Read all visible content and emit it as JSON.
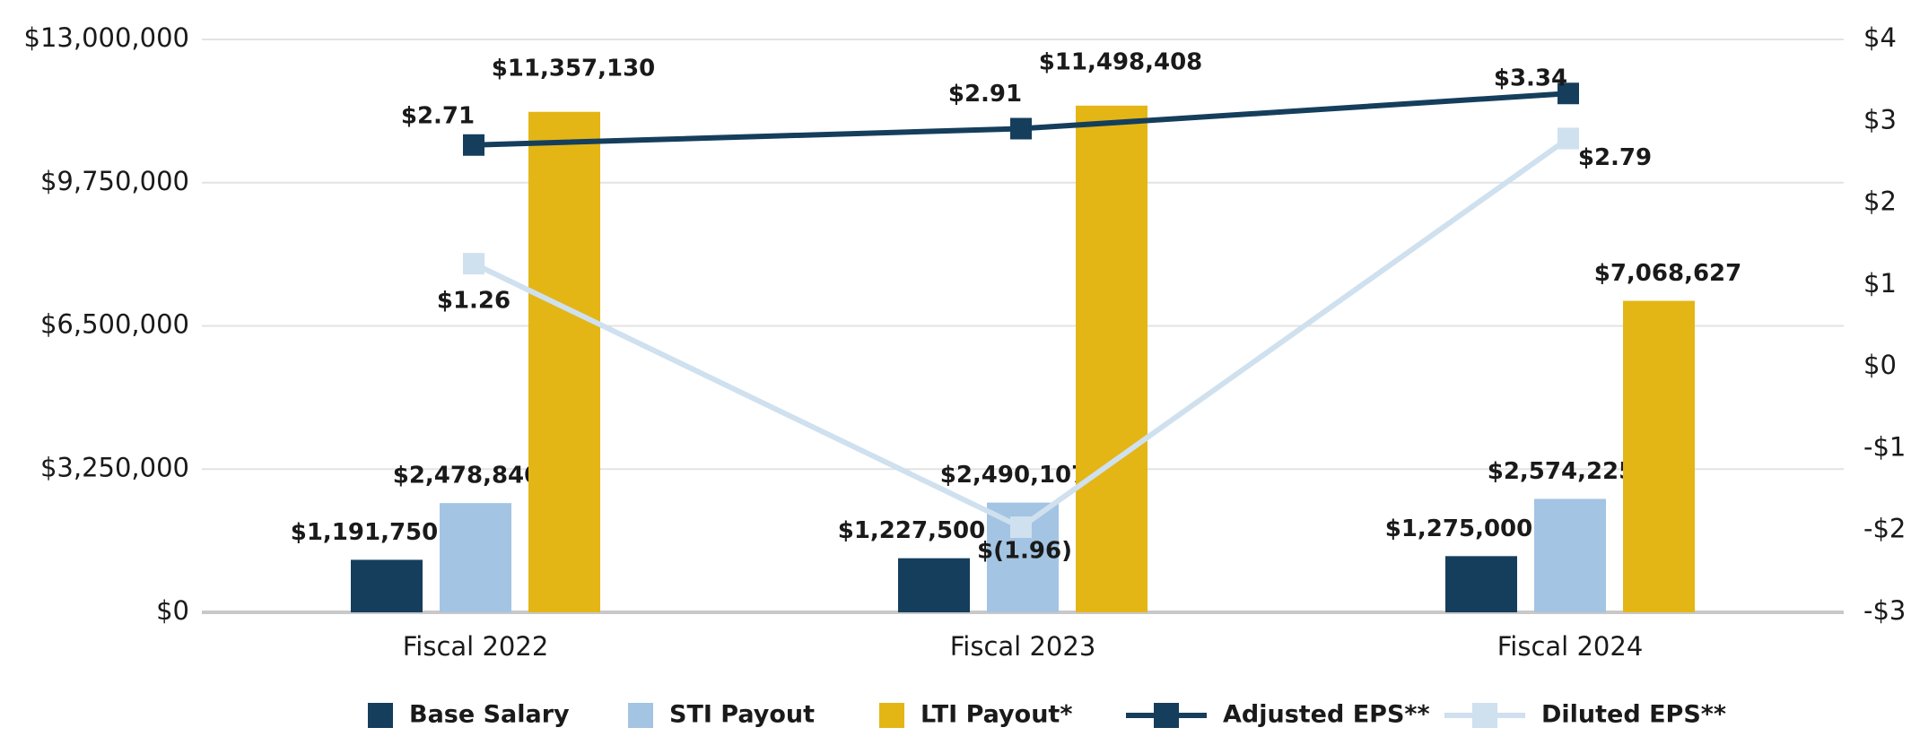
{
  "chart_data": {
    "type": "bar",
    "categories": [
      "Fiscal 2022",
      "Fiscal 2023",
      "Fiscal 2024"
    ],
    "series": [
      {
        "name": "Base Salary",
        "color": "#153e5c",
        "values": [
          1191750,
          1227500,
          1275000
        ],
        "value_labels": [
          "$1,191,750",
          "$1,227,500",
          "$1,275,000"
        ]
      },
      {
        "name": "STI Payout",
        "color": "#a3c4e2",
        "values": [
          2478840,
          2490107,
          2574225
        ],
        "value_labels": [
          "$2,478,840",
          "$2,490,107",
          "$2,574,225"
        ]
      },
      {
        "name": "LTI Payout*",
        "color": "#e3b616",
        "values": [
          11357130,
          11498408,
          7068627
        ],
        "value_labels": [
          "$11,357,130",
          "$11,498,408",
          "$7,068,627"
        ]
      },
      {
        "name": "Adjusted EPS**",
        "color": "#153e5c",
        "axis": "y2",
        "type": "line",
        "values": [
          2.71,
          2.91,
          3.34
        ],
        "value_labels": [
          "$2.71",
          "$2.91",
          "$3.34"
        ]
      },
      {
        "name": "Diluted EPS**",
        "color": "#cfe0ef",
        "axis": "y2",
        "type": "line",
        "values": [
          1.26,
          -1.96,
          2.79
        ],
        "value_labels": [
          "$1.26",
          "$(1.96)",
          "$2.79"
        ]
      }
    ],
    "ylim": [
      0,
      13000000
    ],
    "yticks": [
      {
        "value": 0,
        "label": "$0"
      },
      {
        "value": 3250000,
        "label": "$3,250,000"
      },
      {
        "value": 6500000,
        "label": "$6,500,000"
      },
      {
        "value": 9750000,
        "label": "$9,750,000"
      },
      {
        "value": 13000000,
        "label": "$13,000,000"
      }
    ],
    "y2lim": [
      -3,
      4
    ],
    "y2ticks": [
      {
        "value": -3,
        "label": "-$3"
      },
      {
        "value": -2,
        "label": "-$2"
      },
      {
        "value": -1,
        "label": "-$1"
      },
      {
        "value": 0,
        "label": "$0"
      },
      {
        "value": 1,
        "label": "$1"
      },
      {
        "value": 2,
        "label": "$2"
      },
      {
        "value": 3,
        "label": "$3"
      },
      {
        "value": 4,
        "label": "$4"
      }
    ],
    "grid": true,
    "legend": "bottom"
  }
}
